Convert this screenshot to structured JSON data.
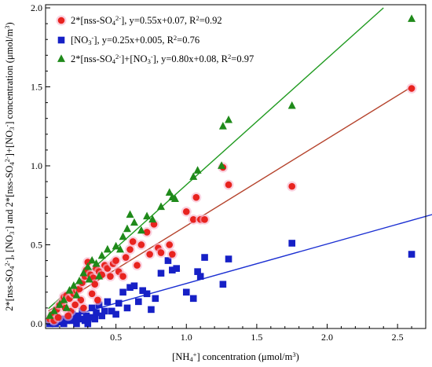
{
  "chart_data": {
    "type": "scatter",
    "x_axis": {
      "label_parts": [
        {
          "t": "[NH",
          "s": "n"
        },
        {
          "t": "4",
          "s": "sub"
        },
        {
          "t": "+",
          "s": "sup"
        },
        {
          "t": "] concentration (μmol/m",
          "s": "n"
        },
        {
          "t": "3",
          "s": "sup"
        },
        {
          "t": ")",
          "s": "n"
        }
      ],
      "range": [
        0,
        2.7
      ],
      "ticks": [
        0.5,
        1.0,
        1.5,
        2.0,
        2.5
      ],
      "tick_labels": [
        "0.5",
        "1.0",
        "1.5",
        "2.0",
        "2.5"
      ]
    },
    "y_axis": {
      "label_parts": [
        {
          "t": "2*[nss-SO",
          "s": "n"
        },
        {
          "t": "4",
          "s": "sub"
        },
        {
          "t": "2-",
          "s": "sup"
        },
        {
          "t": "], [NO",
          "s": "n"
        },
        {
          "t": "3",
          "s": "sub"
        },
        {
          "t": "-",
          "s": "sup"
        },
        {
          "t": "] and 2*[nss-SO",
          "s": "n"
        },
        {
          "t": "4",
          "s": "sub"
        },
        {
          "t": "2-",
          "s": "sup"
        },
        {
          "t": "]+[NO",
          "s": "n"
        },
        {
          "t": "3",
          "s": "sub"
        },
        {
          "t": "-",
          "s": "sup"
        },
        {
          "t": "] concentration (μmol/m",
          "s": "n"
        },
        {
          "t": "3",
          "s": "sup"
        },
        {
          "t": ")",
          "s": "n"
        }
      ],
      "range": [
        -0.03,
        2.02
      ],
      "ticks": [
        0.0,
        0.5,
        1.0,
        1.5,
        2.0
      ],
      "tick_labels": [
        "0.0",
        "0.5",
        "1.0",
        "1.5",
        "2.0"
      ]
    },
    "legend_position": "top-left",
    "series": [
      {
        "key": "sulfate",
        "marker": "circle",
        "color": "#e8231f",
        "halo": "#f6b3c9",
        "fit": {
          "slope": 0.55,
          "intercept": 0.07,
          "x_range": [
            0.02,
            2.6
          ],
          "color": "#b5432c"
        },
        "legend_parts": [
          {
            "t": "2*[nss-SO",
            "s": "n"
          },
          {
            "t": "4",
            "s": "sub"
          },
          {
            "t": "2-",
            "s": "sup"
          },
          {
            "t": "], y=0.55x+0.07, R",
            "s": "n"
          },
          {
            "t": "2",
            "s": "sup"
          },
          {
            "t": "=0.92",
            "s": "n"
          }
        ],
        "points": [
          [
            0.03,
            0.03
          ],
          [
            0.05,
            0.06
          ],
          [
            0.08,
            0.09
          ],
          [
            0.1,
            0.12
          ],
          [
            0.12,
            0.14
          ],
          [
            0.13,
            0.17
          ],
          [
            0.15,
            0.18
          ],
          [
            0.17,
            0.16
          ],
          [
            0.19,
            0.2
          ],
          [
            0.2,
            0.19
          ],
          [
            0.22,
            0.21
          ],
          [
            0.24,
            0.22
          ],
          [
            0.26,
            0.26
          ],
          [
            0.28,
            0.3
          ],
          [
            0.29,
            0.34
          ],
          [
            0.3,
            0.39
          ],
          [
            0.32,
            0.31
          ],
          [
            0.34,
            0.29
          ],
          [
            0.35,
            0.25
          ],
          [
            0.36,
            0.35
          ],
          [
            0.38,
            0.33
          ],
          [
            0.4,
            0.31
          ],
          [
            0.42,
            0.37
          ],
          [
            0.44,
            0.35
          ],
          [
            0.46,
            0.3
          ],
          [
            0.48,
            0.38
          ],
          [
            0.5,
            0.4
          ],
          [
            0.52,
            0.33
          ],
          [
            0.55,
            0.3
          ],
          [
            0.57,
            0.42
          ],
          [
            0.6,
            0.47
          ],
          [
            0.62,
            0.52
          ],
          [
            0.65,
            0.37
          ],
          [
            0.68,
            0.5
          ],
          [
            0.72,
            0.58
          ],
          [
            0.74,
            0.44
          ],
          [
            0.77,
            0.63
          ],
          [
            0.8,
            0.48
          ],
          [
            0.82,
            0.45
          ],
          [
            0.88,
            0.5
          ],
          [
            0.9,
            0.44
          ],
          [
            1.0,
            0.71
          ],
          [
            1.05,
            0.66
          ],
          [
            1.07,
            0.8
          ],
          [
            1.1,
            0.66
          ],
          [
            1.13,
            0.66
          ],
          [
            1.26,
            0.99
          ],
          [
            1.3,
            0.88
          ],
          [
            1.75,
            0.87
          ],
          [
            2.6,
            1.49
          ],
          [
            0.14,
            0.1
          ],
          [
            0.18,
            0.08
          ],
          [
            0.25,
            0.15
          ],
          [
            0.27,
            0.1
          ],
          [
            0.33,
            0.19
          ],
          [
            0.37,
            0.15
          ],
          [
            0.16,
            0.05
          ],
          [
            0.21,
            0.12
          ],
          [
            0.06,
            0.02
          ],
          [
            0.09,
            0.04
          ]
        ]
      },
      {
        "key": "nitrate",
        "marker": "square",
        "color": "#1620c6",
        "fit": {
          "slope": 0.25,
          "intercept": 0.005,
          "x_range": [
            0.02,
            2.8
          ],
          "color": "#1b2fd2"
        },
        "legend_parts": [
          {
            "t": "[NO",
            "s": "n"
          },
          {
            "t": "3",
            "s": "sub"
          },
          {
            "t": "-",
            "s": "sup"
          },
          {
            "t": "], y=0.25x+0.005, R",
            "s": "n"
          },
          {
            "t": "2",
            "s": "sup"
          },
          {
            "t": "=0.76",
            "s": "n"
          }
        ],
        "points": [
          [
            0.03,
            0.0
          ],
          [
            0.05,
            0.01
          ],
          [
            0.07,
            0.0
          ],
          [
            0.09,
            0.02
          ],
          [
            0.1,
            0.01
          ],
          [
            0.12,
            0.03
          ],
          [
            0.13,
            0.0
          ],
          [
            0.15,
            0.02
          ],
          [
            0.16,
            0.04
          ],
          [
            0.18,
            0.02
          ],
          [
            0.19,
            0.06
          ],
          [
            0.21,
            0.03
          ],
          [
            0.22,
            0.0
          ],
          [
            0.23,
            0.05
          ],
          [
            0.25,
            0.03
          ],
          [
            0.26,
            0.08
          ],
          [
            0.28,
            0.02
          ],
          [
            0.29,
            0.05
          ],
          [
            0.3,
            0.0
          ],
          [
            0.32,
            0.04
          ],
          [
            0.33,
            0.1
          ],
          [
            0.35,
            0.03
          ],
          [
            0.36,
            0.07
          ],
          [
            0.38,
            0.12
          ],
          [
            0.4,
            0.05
          ],
          [
            0.42,
            0.08
          ],
          [
            0.44,
            0.14
          ],
          [
            0.47,
            0.08
          ],
          [
            0.5,
            0.06
          ],
          [
            0.52,
            0.13
          ],
          [
            0.55,
            0.2
          ],
          [
            0.58,
            0.1
          ],
          [
            0.6,
            0.23
          ],
          [
            0.63,
            0.24
          ],
          [
            0.66,
            0.14
          ],
          [
            0.69,
            0.21
          ],
          [
            0.72,
            0.19
          ],
          [
            0.75,
            0.09
          ],
          [
            0.78,
            0.16
          ],
          [
            0.82,
            0.32
          ],
          [
            0.87,
            0.4
          ],
          [
            0.9,
            0.34
          ],
          [
            0.93,
            0.35
          ],
          [
            1.0,
            0.2
          ],
          [
            1.05,
            0.16
          ],
          [
            1.08,
            0.33
          ],
          [
            1.1,
            0.3
          ],
          [
            1.13,
            0.42
          ],
          [
            1.26,
            0.25
          ],
          [
            1.3,
            0.41
          ],
          [
            1.75,
            0.51
          ],
          [
            2.6,
            0.44
          ]
        ]
      },
      {
        "key": "combined",
        "marker": "triangle",
        "color": "#1f8a1a",
        "fit": {
          "slope": 0.8,
          "intercept": 0.08,
          "x_range": [
            0.02,
            2.4
          ],
          "color": "#1f9a1f"
        },
        "legend_parts": [
          {
            "t": "2*[nss-SO",
            "s": "n"
          },
          {
            "t": "4",
            "s": "sub"
          },
          {
            "t": "2-",
            "s": "sup"
          },
          {
            "t": "]+[NO",
            "s": "n"
          },
          {
            "t": "3",
            "s": "sub"
          },
          {
            "t": "-",
            "s": "sup"
          },
          {
            "t": "], y=0.80x+0.08, R",
            "s": "n"
          },
          {
            "t": "2",
            "s": "sup"
          },
          {
            "t": "=0.97",
            "s": "n"
          }
        ],
        "points": [
          [
            0.03,
            0.05
          ],
          [
            0.06,
            0.08
          ],
          [
            0.1,
            0.12
          ],
          [
            0.13,
            0.15
          ],
          [
            0.17,
            0.21
          ],
          [
            0.2,
            0.24
          ],
          [
            0.24,
            0.27
          ],
          [
            0.27,
            0.32
          ],
          [
            0.3,
            0.36
          ],
          [
            0.33,
            0.4
          ],
          [
            0.36,
            0.38
          ],
          [
            0.4,
            0.43
          ],
          [
            0.44,
            0.47
          ],
          [
            0.5,
            0.49
          ],
          [
            0.53,
            0.47
          ],
          [
            0.55,
            0.55
          ],
          [
            0.58,
            0.6
          ],
          [
            0.6,
            0.69
          ],
          [
            0.63,
            0.64
          ],
          [
            0.68,
            0.59
          ],
          [
            0.72,
            0.68
          ],
          [
            0.76,
            0.66
          ],
          [
            0.82,
            0.74
          ],
          [
            0.88,
            0.83
          ],
          [
            0.9,
            0.8
          ],
          [
            0.92,
            0.79
          ],
          [
            1.05,
            0.93
          ],
          [
            1.08,
            0.97
          ],
          [
            1.25,
            1.0
          ],
          [
            1.26,
            1.25
          ],
          [
            1.3,
            1.29
          ],
          [
            1.75,
            1.38
          ],
          [
            2.6,
            1.93
          ],
          [
            0.15,
            0.1
          ],
          [
            0.22,
            0.18
          ],
          [
            0.31,
            0.28
          ],
          [
            0.38,
            0.3
          ]
        ]
      }
    ]
  }
}
